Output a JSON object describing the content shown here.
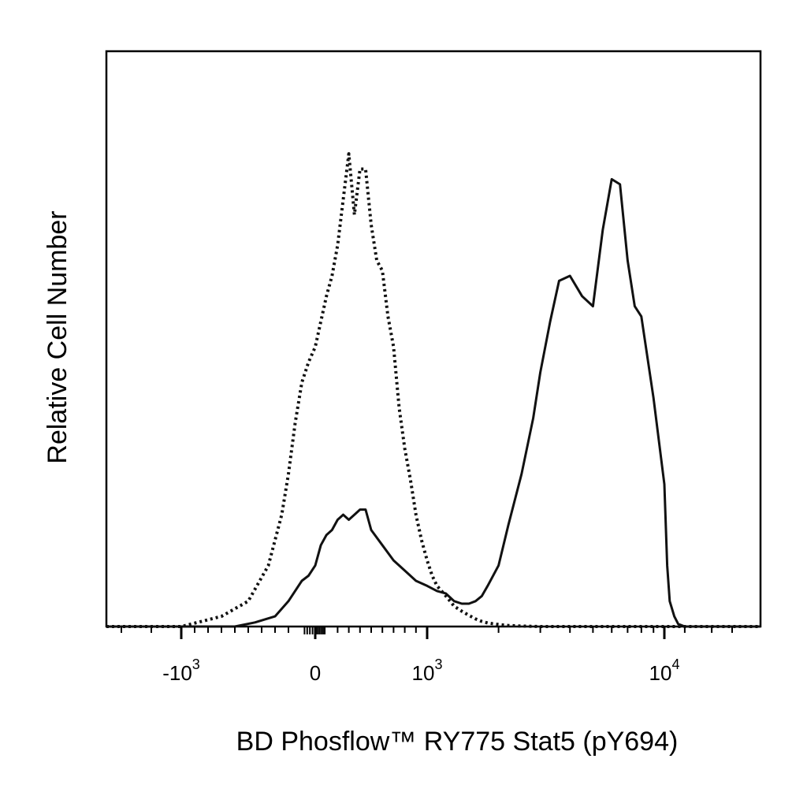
{
  "chart_data": {
    "type": "area",
    "xlabel": "BD Phosflow™ RY775 Stat5 (pY694)",
    "ylabel": "Relative Cell Number",
    "x_scale": "biexponential",
    "xlim": [
      -3500,
      262143
    ],
    "ylim": [
      0,
      1
    ],
    "grid": false,
    "legend": "none",
    "x_ticks": [
      {
        "label": "-10",
        "exp": "3",
        "value": -1000
      },
      {
        "label": "0",
        "exp": "",
        "value": 0
      },
      {
        "label": "10",
        "exp": "3",
        "value": 1000
      },
      {
        "label": "10",
        "exp": "4",
        "value": 10000
      }
    ],
    "series": [
      {
        "style": "dotted",
        "color": "#111111",
        "x": [
          -3500,
          -1000,
          -700,
          -500,
          -350,
          -250,
          -200,
          -150,
          -100,
          -50,
          0,
          50,
          100,
          150,
          200,
          250,
          300,
          350,
          400,
          450,
          500,
          550,
          600,
          650,
          700,
          750,
          800,
          850,
          900,
          950,
          1000,
          1050,
          1100,
          1150,
          1200,
          1300,
          1400,
          1500,
          1600,
          1700,
          1800,
          2000,
          2200,
          2500,
          3000,
          4000,
          6000,
          10000,
          20000,
          262143
        ],
        "y": [
          0.0,
          0.0,
          0.02,
          0.05,
          0.12,
          0.22,
          0.3,
          0.4,
          0.48,
          0.52,
          0.55,
          0.6,
          0.65,
          0.69,
          0.75,
          0.84,
          0.93,
          0.81,
          0.9,
          0.9,
          0.79,
          0.72,
          0.7,
          0.61,
          0.55,
          0.43,
          0.35,
          0.29,
          0.22,
          0.17,
          0.13,
          0.1,
          0.08,
          0.07,
          0.06,
          0.04,
          0.03,
          0.022,
          0.015,
          0.01,
          0.007,
          0.004,
          0.002,
          0.001,
          0.0,
          0.0,
          0.0,
          0.0,
          0.0,
          0.0
        ]
      },
      {
        "style": "solid",
        "color": "#111111",
        "x": [
          -3500,
          -600,
          -450,
          -300,
          -200,
          -100,
          -50,
          0,
          50,
          100,
          150,
          200,
          250,
          300,
          350,
          400,
          450,
          500,
          600,
          700,
          800,
          900,
          1000,
          1100,
          1200,
          1300,
          1400,
          1500,
          1600,
          1700,
          1800,
          2000,
          2200,
          2500,
          2800,
          3000,
          3300,
          3600,
          4000,
          4500,
          5000,
          5500,
          6000,
          6500,
          7000,
          7500,
          8000,
          9000,
          10000,
          11000,
          12000,
          14000,
          16000,
          20000,
          262143
        ],
        "y": [
          0.0,
          0.0,
          0.008,
          0.02,
          0.05,
          0.09,
          0.1,
          0.12,
          0.16,
          0.18,
          0.19,
          0.21,
          0.22,
          0.21,
          0.22,
          0.23,
          0.23,
          0.19,
          0.16,
          0.13,
          0.11,
          0.09,
          0.08,
          0.07,
          0.065,
          0.05,
          0.045,
          0.045,
          0.05,
          0.06,
          0.08,
          0.12,
          0.2,
          0.3,
          0.41,
          0.5,
          0.6,
          0.68,
          0.69,
          0.65,
          0.63,
          0.78,
          0.88,
          0.87,
          0.72,
          0.63,
          0.61,
          0.45,
          0.28,
          0.12,
          0.05,
          0.02,
          0.005,
          0.0,
          0.0
        ]
      }
    ]
  }
}
